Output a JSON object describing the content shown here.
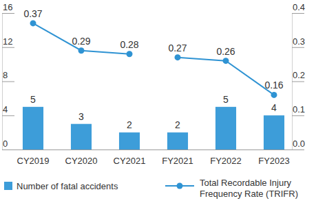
{
  "chart_data": {
    "type": "bar",
    "categories": [
      "CY2019",
      "CY2020",
      "CY2021",
      "FY2021",
      "FY2022",
      "FY2023"
    ],
    "series": [
      {
        "name": "Number of fatal accidents",
        "type": "bar",
        "color": "#3d9dd9",
        "values": [
          5,
          3,
          2,
          2,
          5,
          4
        ]
      },
      {
        "name": "Total Recordable Injury Frequency Rate (TRIFR)",
        "type": "line",
        "axis": "y2",
        "color": "#2f93d3",
        "marker": "circle",
        "values": [
          0.37,
          0.29,
          0.28,
          null,
          null,
          null
        ]
      },
      {
        "name": "Total Recordable Injury Frequency Rate (TRIFR)",
        "type": "line",
        "axis": "y2",
        "color": "#2f93d3",
        "marker": "circle",
        "values": [
          null,
          null,
          null,
          0.27,
          0.26,
          0.16
        ]
      }
    ],
    "ylim": [
      0,
      16
    ],
    "yticks": [
      0,
      4,
      8,
      12,
      16
    ],
    "y2lim": [
      0,
      0.4
    ],
    "y2ticks": [
      {
        "value": 0,
        "label": "0.0"
      },
      0.1,
      0.2,
      0.3,
      0.4
    ],
    "data_labels": true,
    "legend": "bottom"
  }
}
